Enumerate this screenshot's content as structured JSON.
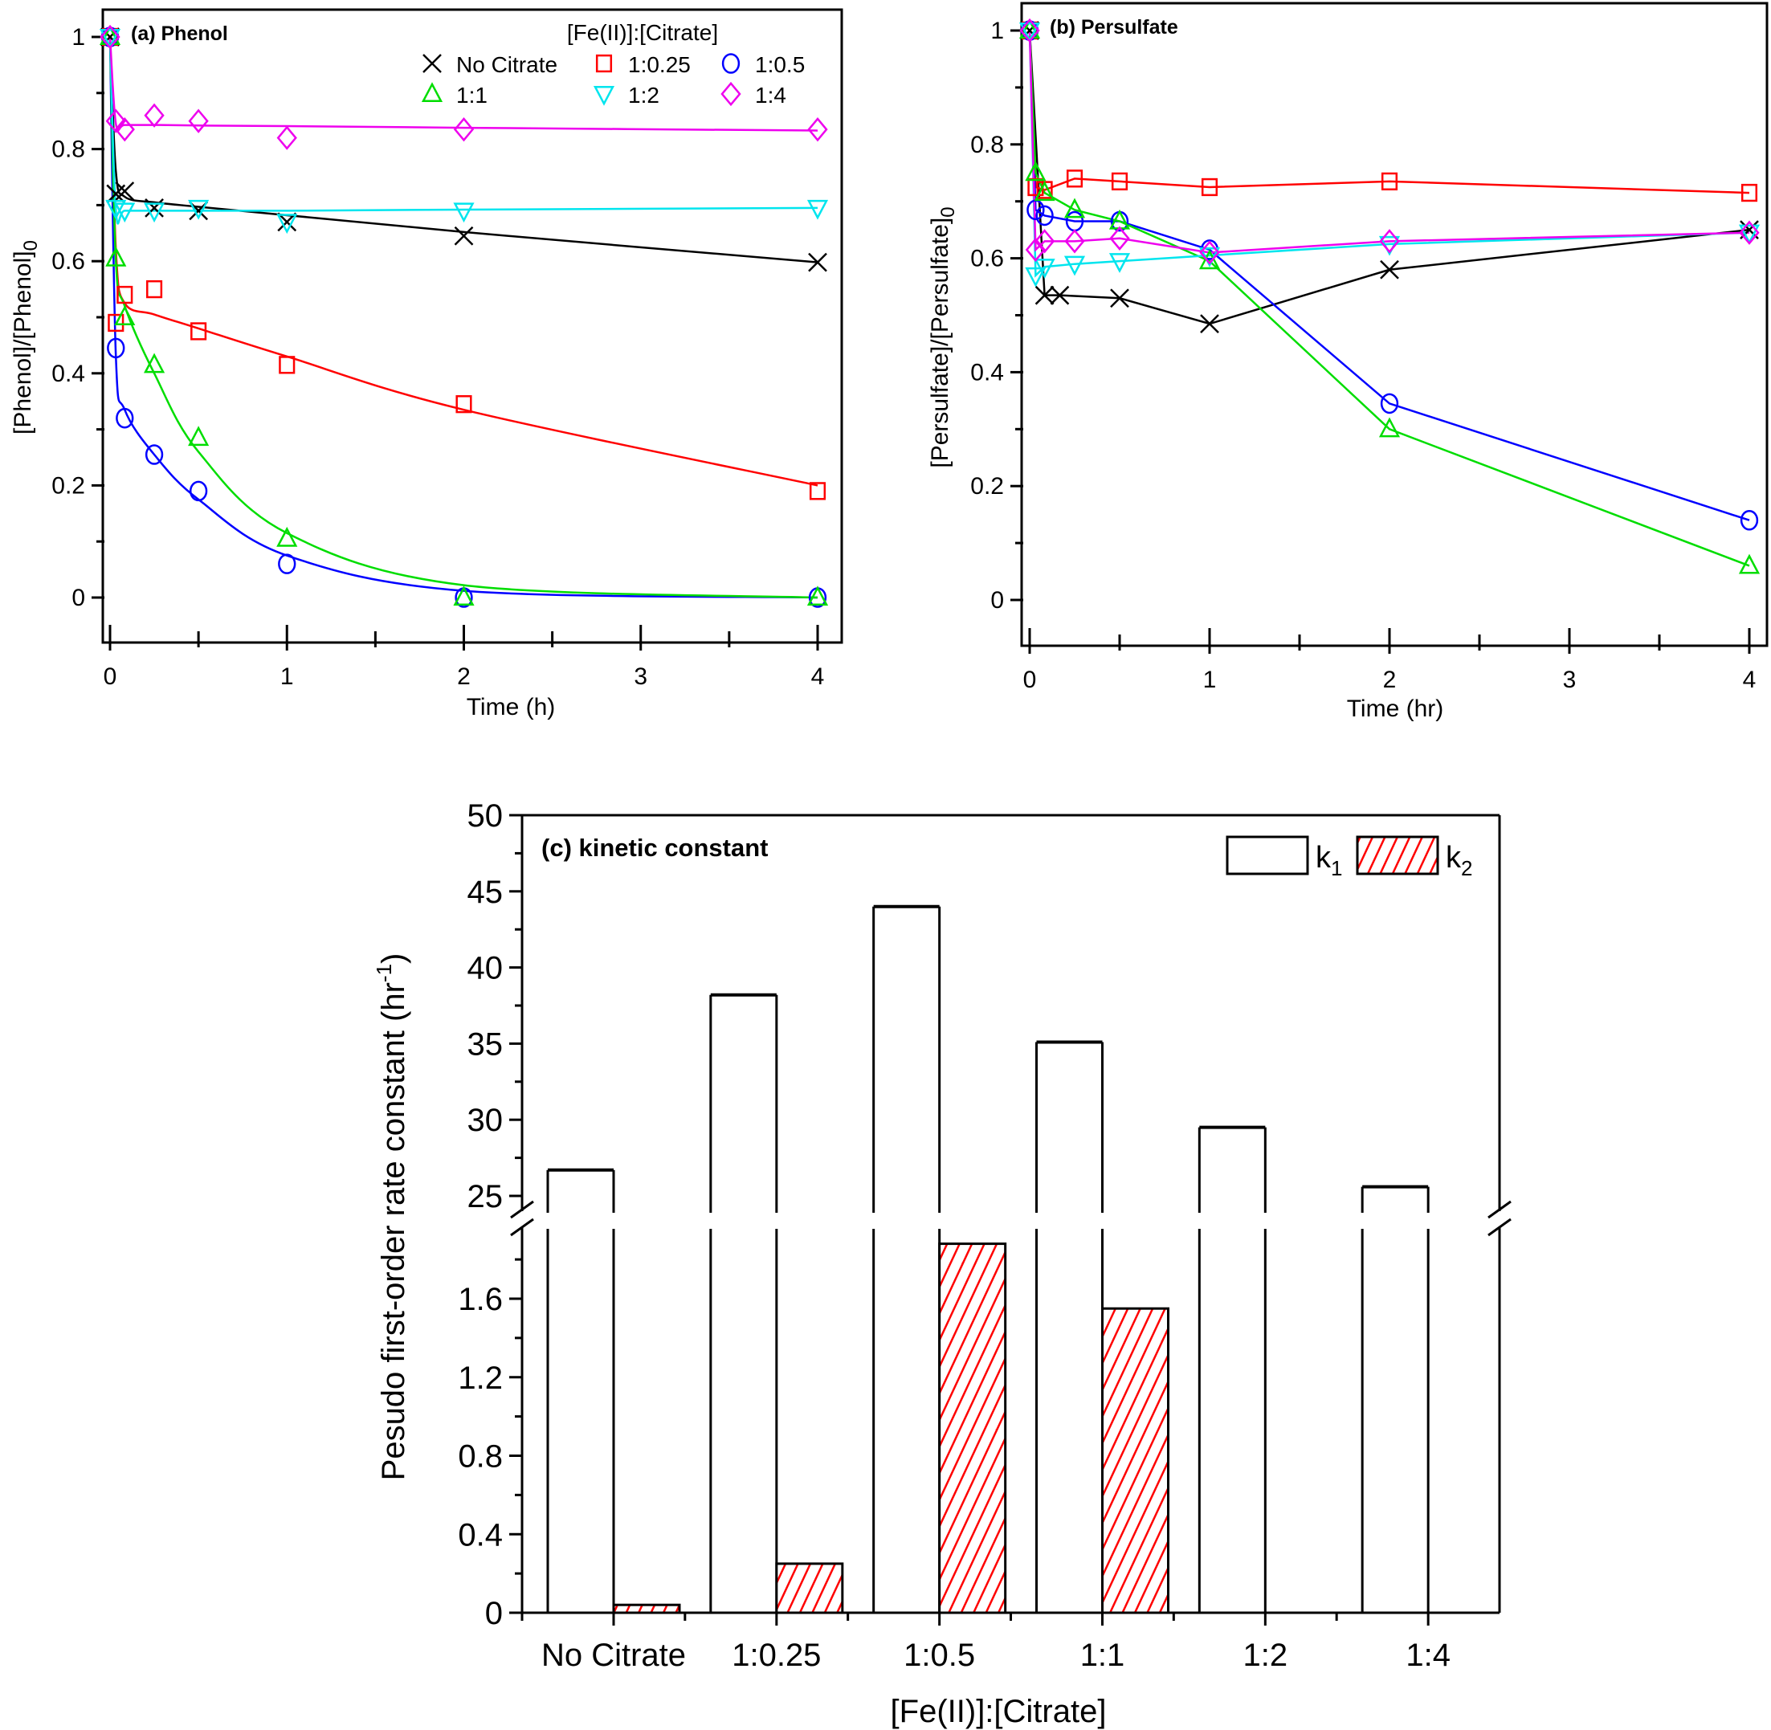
{
  "chart_data": [
    {
      "id": "a",
      "type": "scatter",
      "title": "(a) Phenol",
      "xlabel": "Time (h)",
      "ylabel": "[Phenol]/[Phenol]",
      "ylabel_sub": "0",
      "xlim": [
        -0.05,
        4.15
      ],
      "ylim": [
        -0.08,
        1.04
      ],
      "xticks": [
        0,
        1,
        2,
        3,
        4
      ],
      "xtick_labels": [
        "0",
        "1",
        "2",
        "3",
        "4"
      ],
      "xminor": [
        0.5,
        1.5,
        2.5,
        3.5
      ],
      "yticks": [
        0,
        0.2,
        0.4,
        0.6,
        0.8,
        1
      ],
      "ytick_labels": [
        "0",
        "0.2",
        "0.4",
        "0.6",
        "0.8",
        "1"
      ],
      "yminor": [
        0.1,
        0.3,
        0.5,
        0.7,
        0.9
      ],
      "legend_title": "[Fe(II)]:[Citrate]",
      "legend_position": "top-right",
      "line_style": "fit-curve",
      "series": [
        {
          "name": "No Citrate",
          "marker": "x",
          "color": "#000000",
          "x": [
            0,
            0.033,
            0.083,
            0.25,
            0.5,
            1,
            2,
            4
          ],
          "y": [
            1.0,
            0.72,
            0.725,
            0.695,
            0.69,
            0.67,
            0.645,
            0.598
          ],
          "fit_y": [
            1.0,
            0.76,
            0.715,
            0.705,
            0.697,
            0.682,
            0.652,
            0.598
          ]
        },
        {
          "name": "1:0.25",
          "marker": "square",
          "color": "#ff0000",
          "x": [
            0,
            0.033,
            0.083,
            0.25,
            0.5,
            1,
            2,
            4
          ],
          "y": [
            1.0,
            0.49,
            0.54,
            0.55,
            0.475,
            0.415,
            0.345,
            0.19
          ],
          "fit_y": [
            1.0,
            0.62,
            0.525,
            0.505,
            0.48,
            0.43,
            0.335,
            0.2
          ]
        },
        {
          "name": "1:0.5",
          "marker": "circle",
          "color": "#0000ff",
          "x": [
            0,
            0.033,
            0.083,
            0.25,
            0.5,
            1,
            2,
            4
          ],
          "y": [
            1.0,
            0.445,
            0.32,
            0.255,
            0.19,
            0.06,
            0.0,
            0.0
          ],
          "fit_y": [
            1.0,
            0.43,
            0.335,
            0.255,
            0.175,
            0.075,
            0.012,
            0.0
          ]
        },
        {
          "name": "1:1",
          "marker": "triangle-up",
          "color": "#00dd00",
          "x": [
            0,
            0.033,
            0.083,
            0.25,
            0.5,
            1,
            2,
            4
          ],
          "y": [
            1.0,
            0.605,
            0.5,
            0.415,
            0.285,
            0.105,
            0.0,
            0.0
          ],
          "fit_y": [
            1.0,
            0.6,
            0.52,
            0.4,
            0.26,
            0.115,
            0.022,
            0.0
          ]
        },
        {
          "name": "1:2",
          "marker": "triangle-down",
          "color": "#00e5ee",
          "x": [
            0,
            0.033,
            0.083,
            0.25,
            0.5,
            1,
            2,
            4
          ],
          "y": [
            1.0,
            0.695,
            0.69,
            0.69,
            0.695,
            0.67,
            0.69,
            0.695
          ],
          "fit_y": [
            1.0,
            0.69,
            0.69,
            0.69,
            0.69,
            0.69,
            0.692,
            0.695
          ]
        },
        {
          "name": "1:4",
          "marker": "diamond",
          "color": "#ee00ee",
          "x": [
            0,
            0.033,
            0.083,
            0.25,
            0.5,
            1,
            2,
            4
          ],
          "y": [
            1.0,
            0.85,
            0.835,
            0.86,
            0.85,
            0.82,
            0.835,
            0.835
          ],
          "fit_y": [
            1.0,
            0.845,
            0.843,
            0.843,
            0.842,
            0.841,
            0.838,
            0.833
          ]
        }
      ]
    },
    {
      "id": "b",
      "type": "line",
      "title": "(b) Persulfate",
      "xlabel": "Time (hr)",
      "ylabel": "[Persulfate]/[Persulfate]",
      "ylabel_sub": "0",
      "xlim": [
        -0.05,
        4.1
      ],
      "ylim": [
        -0.05,
        1.03
      ],
      "xticks": [
        0,
        1,
        2,
        3,
        4
      ],
      "xtick_labels": [
        "0",
        "1",
        "2",
        "3",
        "4"
      ],
      "xminor": [
        0.5,
        1.5,
        2.5,
        3.5
      ],
      "yticks": [
        0,
        0.2,
        0.4,
        0.6,
        0.8,
        1
      ],
      "ytick_labels": [
        "0",
        "0.2",
        "0.4",
        "0.6",
        "0.8",
        "1"
      ],
      "yminor": [
        0.1,
        0.3,
        0.5,
        0.7,
        0.9
      ],
      "line_style": "connected",
      "series": [
        {
          "name": "No Citrate",
          "marker": "x",
          "color": "#000000",
          "x": [
            0,
            0.083,
            0.167,
            0.5,
            1,
            2,
            4
          ],
          "y": [
            1.0,
            0.535,
            0.535,
            0.53,
            0.485,
            0.58,
            0.65
          ]
        },
        {
          "name": "1:0.25",
          "marker": "square",
          "color": "#ff0000",
          "x": [
            0,
            0.033,
            0.083,
            0.25,
            0.5,
            1,
            2,
            4
          ],
          "y": [
            1.0,
            0.725,
            0.72,
            0.74,
            0.735,
            0.725,
            0.735,
            0.715
          ]
        },
        {
          "name": "1:0.5",
          "marker": "circle",
          "color": "#0000ff",
          "x": [
            0,
            0.033,
            0.083,
            0.25,
            0.5,
            1,
            2,
            4
          ],
          "y": [
            1.0,
            0.685,
            0.675,
            0.665,
            0.665,
            0.615,
            0.345,
            0.14
          ]
        },
        {
          "name": "1:1",
          "marker": "triangle-up",
          "color": "#00dd00",
          "x": [
            0,
            0.033,
            0.083,
            0.25,
            0.5,
            1,
            2,
            4
          ],
          "y": [
            1.0,
            0.75,
            0.715,
            0.685,
            0.665,
            0.595,
            0.3,
            0.06
          ]
        },
        {
          "name": "1:2",
          "marker": "triangle-down",
          "color": "#00e5ee",
          "x": [
            0,
            0.033,
            0.083,
            0.25,
            0.5,
            1,
            2,
            4
          ],
          "y": [
            1.0,
            0.57,
            0.585,
            0.59,
            0.595,
            0.605,
            0.625,
            0.645
          ]
        },
        {
          "name": "1:4",
          "marker": "diamond",
          "color": "#ee00ee",
          "x": [
            0,
            0.033,
            0.083,
            0.25,
            0.5,
            1,
            2,
            4
          ],
          "y": [
            1.0,
            0.615,
            0.63,
            0.63,
            0.635,
            0.61,
            0.63,
            0.645
          ]
        }
      ]
    },
    {
      "id": "c",
      "type": "bar",
      "title": "(c) kinetic constant",
      "xlabel": "[Fe(II)]:[Citrate]",
      "ylabel": "Pesudo first-order rate constant (hr",
      "ylabel_sup": "-1",
      "ylabel_end": ")",
      "categories": [
        "No Citrate",
        "1:0.25",
        "1:0.5",
        "1:1",
        "1:2",
        "1:4"
      ],
      "axis_break": true,
      "lower_ylim": [
        0,
        1.97
      ],
      "upper_ylim": [
        24,
        50
      ],
      "lower_yticks": [
        0,
        0.4,
        0.8,
        1.2,
        1.6
      ],
      "lower_ytick_labels": [
        "0",
        "0.4",
        "0.8",
        "1.2",
        "1.6"
      ],
      "lower_yminor": [
        0.2,
        0.6,
        1.0,
        1.4,
        1.8
      ],
      "upper_yticks": [
        25,
        30,
        35,
        40,
        45,
        50
      ],
      "upper_ytick_labels": [
        "25",
        "30",
        "35",
        "40",
        "45",
        "50"
      ],
      "upper_yminor": [
        27.5,
        32.5,
        37.5,
        42.5,
        47.5
      ],
      "legend_position": "top-right",
      "series": [
        {
          "name": "k",
          "sub": "1",
          "fill": "#ffffff",
          "pattern": "none",
          "values": [
            26.7,
            38.2,
            44.0,
            35.1,
            29.5,
            25.6
          ]
        },
        {
          "name": "k",
          "sub": "2",
          "fill": "#ff0000",
          "pattern": "diagonal-hatch",
          "values": [
            0.04,
            0.25,
            1.88,
            1.55,
            0,
            0
          ]
        }
      ]
    }
  ]
}
